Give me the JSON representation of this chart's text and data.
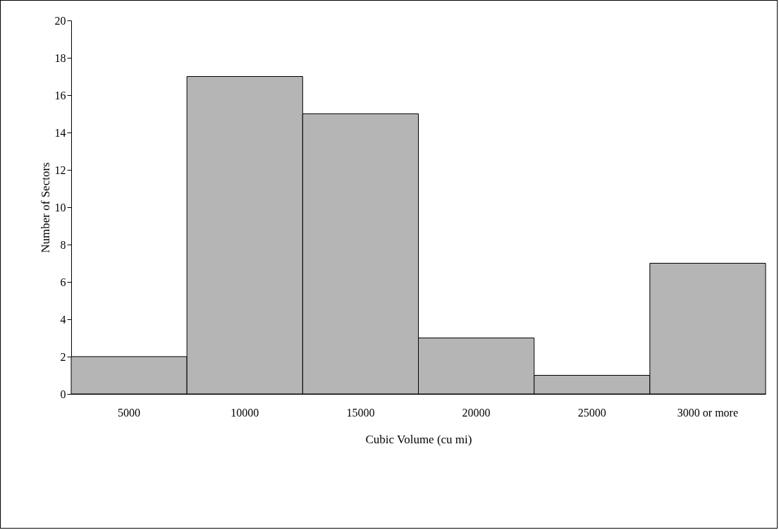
{
  "chart_data": {
    "type": "bar",
    "xlabel": "Cubic Volume (cu mi)",
    "ylabel": "Number of Sectors",
    "categories": [
      "5000",
      "10000",
      "15000",
      "20000",
      "25000",
      "3000 or more"
    ],
    "values": [
      2,
      17,
      15,
      3,
      1,
      7
    ],
    "color": "#b5b5b5",
    "ylim": [
      0,
      20
    ],
    "yticks": [
      0,
      2,
      4,
      6,
      8,
      10,
      12,
      14,
      16,
      18,
      20
    ],
    "grid": false
  }
}
